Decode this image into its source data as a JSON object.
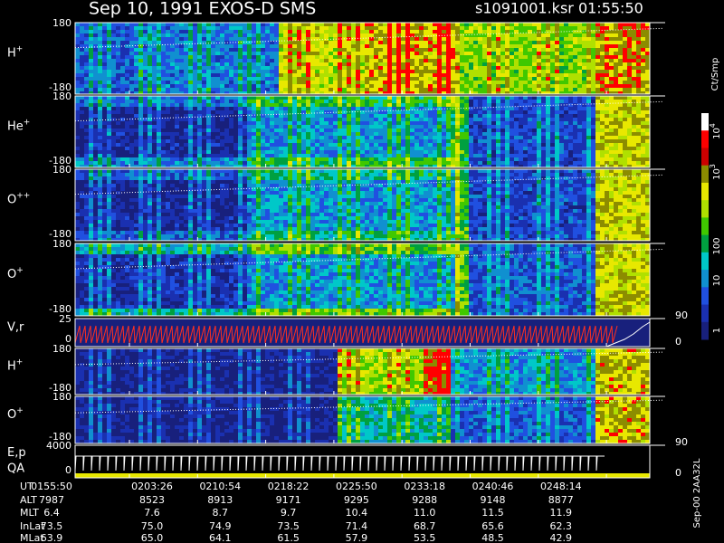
{
  "header": {
    "title": "Sep 10, 1991   EXOS-D SMS",
    "file": "s1091001.ksr  01:55:50"
  },
  "panels": [
    {
      "label": "H",
      "sup": "+",
      "left_ticks": [
        180,
        -180
      ]
    },
    {
      "label": "He",
      "sup": "+",
      "left_ticks": [
        180,
        -180
      ]
    },
    {
      "label": "O",
      "sup": "++",
      "left_ticks": [
        180,
        -180
      ]
    },
    {
      "label": "O",
      "sup": "+",
      "left_ticks": [
        180,
        -180
      ]
    },
    {
      "label": "V,r",
      "left_ticks": [
        25,
        0
      ],
      "right_ticks": [
        90,
        0
      ]
    },
    {
      "label": "H",
      "sup": "+",
      "left_ticks": [
        180,
        -180
      ]
    },
    {
      "label": "O",
      "sup": "+",
      "left_ticks": [
        180,
        -180
      ]
    },
    {
      "label": "E,p",
      "label2": "QA",
      "left_ticks": [
        4000,
        0
      ],
      "right_ticks": [
        90,
        0
      ]
    }
  ],
  "colorbar": {
    "unit": "Ct/Smp",
    "labels": [
      {
        "base": "10",
        "sup": "4"
      },
      {
        "base": "10",
        "sup": "3"
      },
      {
        "base": "100"
      },
      {
        "base": "10"
      },
      {
        "base": "1"
      }
    ]
  },
  "footer_id": "Sep-00  2AA32L",
  "table": {
    "rows": [
      [
        "UT",
        "0155:50",
        "0203:26",
        "0210:54",
        "0218:22",
        "0225:50",
        "0233:18",
        "0240:46",
        "0248:14"
      ],
      [
        "ALT",
        "7987",
        "8523",
        "8913",
        "9171",
        "9295",
        "9288",
        "9148",
        "8877"
      ],
      [
        "MLT",
        "6.4",
        "7.6",
        "8.7",
        "9.7",
        "10.4",
        "11.0",
        "11.5",
        "11.9"
      ],
      [
        "InLat",
        "73.5",
        "75.0",
        "74.9",
        "73.5",
        "71.4",
        "68.7",
        "65.6",
        "62.3"
      ],
      [
        "MLat",
        "63.9",
        "65.0",
        "64.1",
        "61.5",
        "57.9",
        "53.5",
        "48.5",
        "42.9"
      ]
    ]
  }
}
